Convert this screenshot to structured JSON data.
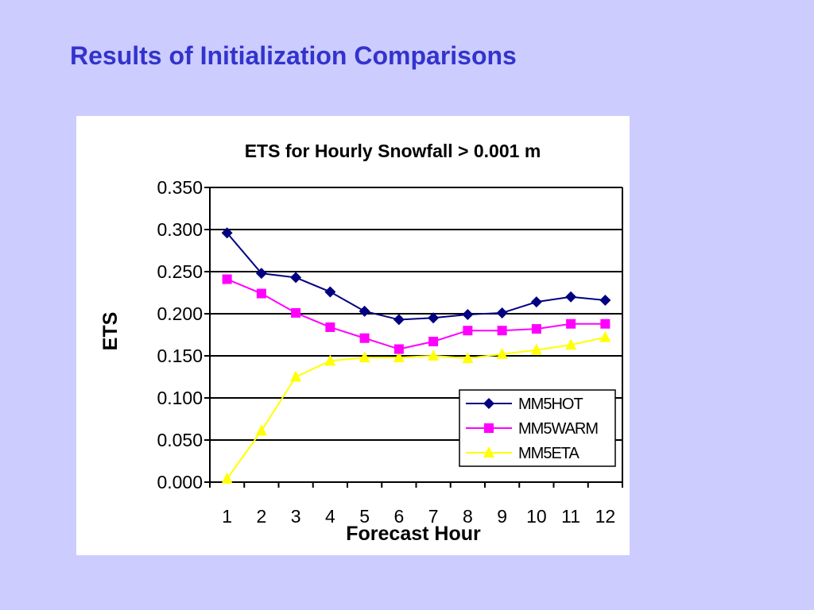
{
  "slide": {
    "title": "Results of Initialization Comparisons"
  },
  "chart_data": {
    "type": "line",
    "title": "ETS for Hourly Snowfall > 0.001 m",
    "xlabel": "Forecast Hour",
    "ylabel": "ETS",
    "categories": [
      "1",
      "2",
      "3",
      "4",
      "5",
      "6",
      "7",
      "8",
      "9",
      "10",
      "11",
      "12"
    ],
    "ylim": [
      0,
      0.35
    ],
    "yticks": [
      "0.000",
      "0.050",
      "0.100",
      "0.150",
      "0.200",
      "0.250",
      "0.300",
      "0.350"
    ],
    "grid": true,
    "legend": "bottom-right",
    "series": [
      {
        "name": "MM5HOT",
        "color": "#000080",
        "marker": "diamond",
        "values": [
          0.296,
          0.248,
          0.243,
          0.226,
          0.203,
          0.193,
          0.195,
          0.199,
          0.201,
          0.214,
          0.22,
          0.216
        ]
      },
      {
        "name": "MM5WARM",
        "color": "#ff00ff",
        "marker": "square",
        "values": [
          0.241,
          0.224,
          0.201,
          0.184,
          0.171,
          0.158,
          0.167,
          0.18,
          0.18,
          0.182,
          0.188,
          0.188
        ]
      },
      {
        "name": "MM5ETA",
        "color": "#ffff00",
        "marker": "triangle",
        "values": [
          0.004,
          0.061,
          0.125,
          0.144,
          0.148,
          0.148,
          0.15,
          0.147,
          0.152,
          0.157,
          0.163,
          0.172
        ]
      }
    ]
  }
}
